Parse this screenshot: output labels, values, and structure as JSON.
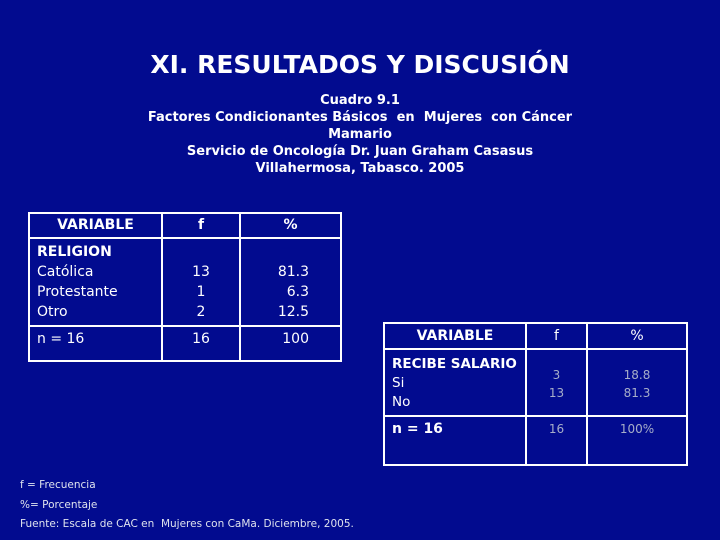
{
  "page": {
    "background": "#020b8f",
    "text_color": "#ffffff",
    "muted_color": "#a7aec9"
  },
  "title": "XI. RESULTADOS Y DISCUSIÓN",
  "subtitle": {
    "line1": "Cuadro 9.1",
    "line2": "Factores Condicionantes Básicos  en  Mujeres  con Cáncer",
    "line3": "Mamario",
    "line4": "Servicio de Oncología Dr. Juan Graham Casasus",
    "line5": "Villahermosa, Tabasco. 2005"
  },
  "table1": {
    "headers": {
      "variable": "VARIABLE",
      "f": "f",
      "pct": "%"
    },
    "group": "RELIGION",
    "rows": [
      {
        "label": "Católica",
        "f": "13",
        "pct": "81.3"
      },
      {
        "label": "Protestante",
        "f": "1",
        "pct": "6.3"
      },
      {
        "label": "Otro",
        "f": "2",
        "pct": "12.5"
      }
    ],
    "total": {
      "label": "n = 16",
      "f": "16",
      "pct": "100"
    }
  },
  "table2": {
    "headers": {
      "variable": "VARIABLE",
      "f": "f",
      "pct": "%"
    },
    "group": "RECIBE SALARIO",
    "rows": [
      {
        "label": "Si",
        "f": "3",
        "pct": "18.8"
      },
      {
        "label": "No",
        "f": "13",
        "pct": "81.3"
      }
    ],
    "total": {
      "label": "n = 16",
      "f": "16",
      "pct": "100%"
    }
  },
  "footnotes": {
    "line1": "f = Frecuencia",
    "line2": "%= Porcentaje",
    "line3": "Fuente: Escala de CAC en  Mujeres con CaMa. Diciembre, 2005."
  }
}
